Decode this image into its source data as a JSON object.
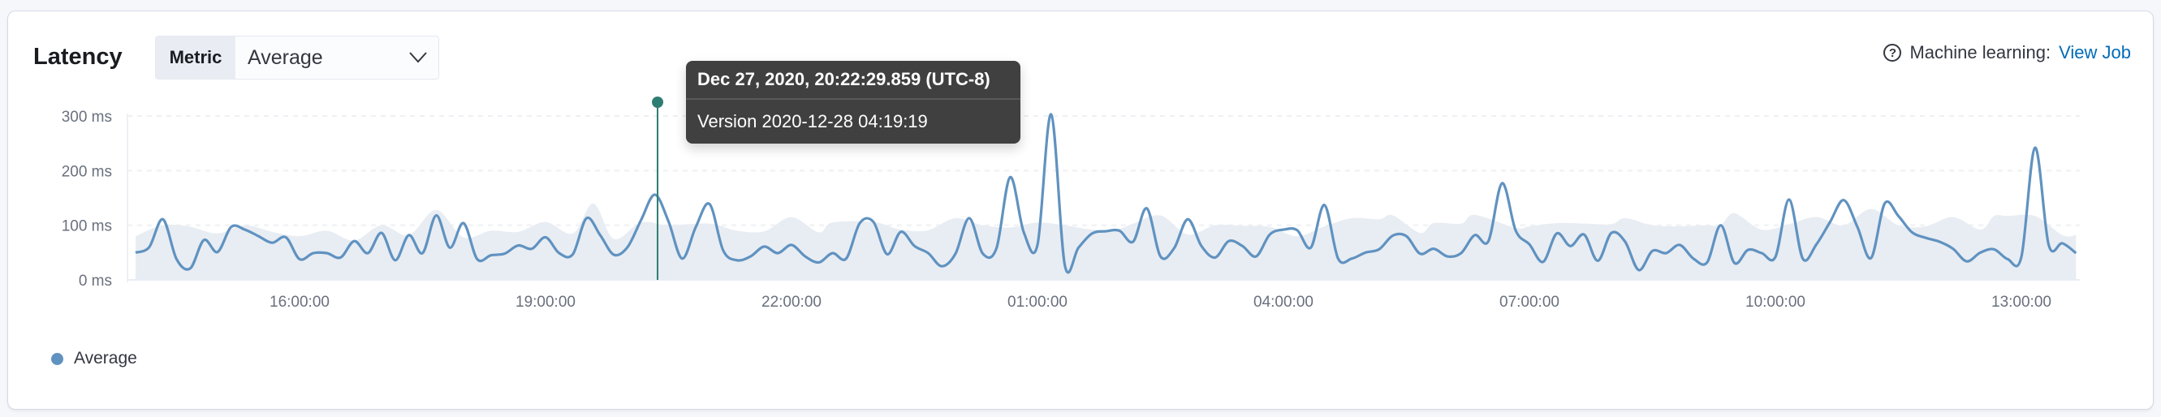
{
  "header": {
    "title": "Latency",
    "metric_select": {
      "prepend_label": "Metric",
      "selected": "Average"
    },
    "ml_link": {
      "label": "Machine learning:",
      "link_text": "View Job",
      "icon": "question-circle-icon"
    }
  },
  "tooltip": {
    "timestamp": "Dec 27, 2020, 20:22:29.859 (UTC-8)",
    "text": "Version 2020-12-28 04:19:19"
  },
  "legend": [
    {
      "label": "Average",
      "color": "#6092C0"
    }
  ],
  "colors": {
    "line": "#6092C0",
    "band": "#E6EBF2",
    "annotation": "#2E7D72",
    "link": "#006BB8"
  },
  "chart_data": {
    "type": "line",
    "title": "",
    "xlabel": "",
    "ylabel": "",
    "ylim": [
      0,
      300
    ],
    "y_ticks": [
      "0 ms",
      "100 ms",
      "200 ms",
      "300 ms"
    ],
    "y_tick_values": [
      0,
      100,
      200,
      300
    ],
    "x_ticks": [
      "16:00:00",
      "19:00:00",
      "22:00:00",
      "01:00:00",
      "04:00:00",
      "07:00:00",
      "10:00:00",
      "13:00:00"
    ],
    "x_range": [
      "14:00",
      "13:40"
    ],
    "grid": "horizontal dashed",
    "legend_position": "bottom-left",
    "annotation": {
      "x": "20:22",
      "label": "Version 2020-12-28 04:19:19"
    },
    "series": [
      {
        "name": "Average",
        "x": [
          "14:00",
          "14:10",
          "14:20",
          "14:30",
          "14:40",
          "14:50",
          "15:00",
          "15:10",
          "15:20",
          "15:30",
          "15:40",
          "15:50",
          "16:00",
          "16:10",
          "16:20",
          "16:30",
          "16:40",
          "16:50",
          "17:00",
          "17:10",
          "17:20",
          "17:30",
          "17:40",
          "17:50",
          "18:00",
          "18:10",
          "18:20",
          "18:30",
          "18:40",
          "18:50",
          "19:00",
          "19:10",
          "19:20",
          "19:30",
          "19:40",
          "19:50",
          "20:00",
          "20:10",
          "20:20",
          "20:30",
          "20:40",
          "20:50",
          "21:00",
          "21:10",
          "21:20",
          "21:30",
          "21:40",
          "21:50",
          "22:00",
          "22:10",
          "22:20",
          "22:30",
          "22:40",
          "22:50",
          "23:00",
          "23:10",
          "23:20",
          "23:30",
          "23:40",
          "23:50",
          "00:00",
          "00:10",
          "00:20",
          "00:30",
          "00:40",
          "00:50",
          "01:00",
          "01:10",
          "01:20",
          "01:30",
          "01:40",
          "01:50",
          "02:00",
          "02:10",
          "02:20",
          "02:30",
          "02:40",
          "02:50",
          "03:00",
          "03:10",
          "03:20",
          "03:30",
          "03:40",
          "03:50",
          "04:00",
          "04:10",
          "04:20",
          "04:30",
          "04:40",
          "04:50",
          "05:00",
          "05:10",
          "05:20",
          "05:30",
          "05:40",
          "05:50",
          "06:00",
          "06:10",
          "06:20",
          "06:30",
          "06:40",
          "06:50",
          "07:00",
          "07:10",
          "07:20",
          "07:30",
          "07:40",
          "07:50",
          "08:00",
          "08:10",
          "08:20",
          "08:30",
          "08:40",
          "08:50",
          "09:00",
          "09:10",
          "09:20",
          "09:30",
          "09:40",
          "09:50",
          "10:00",
          "10:10",
          "10:20",
          "10:30",
          "10:40",
          "10:50",
          "11:00",
          "11:10",
          "11:20",
          "11:30",
          "11:40",
          "11:50",
          "12:00",
          "12:10",
          "12:20",
          "12:30",
          "12:40",
          "12:50",
          "13:00",
          "13:10",
          "13:20",
          "13:30",
          "13:40"
        ],
        "values": [
          50,
          60,
          111,
          38,
          21,
          73,
          51,
          97,
          92,
          80,
          68,
          78,
          38,
          49,
          49,
          41,
          71,
          49,
          86,
          36,
          82,
          49,
          118,
          59,
          104,
          38,
          45,
          48,
          63,
          57,
          78,
          49,
          47,
          113,
          82,
          46,
          60,
          110,
          156,
          107,
          39,
          97,
          139,
          54,
          36,
          43,
          61,
          49,
          64,
          43,
          32,
          49,
          39,
          104,
          106,
          47,
          88,
          62,
          49,
          25,
          48,
          113,
          48,
          58,
          188,
          87,
          64,
          303,
          27,
          59,
          85,
          89,
          90,
          70,
          131,
          43,
          58,
          111,
          62,
          41,
          71,
          62,
          43,
          83,
          92,
          91,
          59,
          137,
          39,
          39,
          50,
          56,
          81,
          80,
          48,
          57,
          43,
          49,
          82,
          71,
          177,
          90,
          65,
          33,
          85,
          62,
          83,
          35,
          86,
          70,
          18,
          53,
          49,
          64,
          39,
          32,
          100,
          31,
          55,
          49,
          42,
          147,
          39,
          65,
          106,
          146,
          97,
          40,
          140,
          117,
          87,
          77,
          70,
          57,
          34,
          50,
          56,
          38,
          42,
          242,
          64,
          67,
          49
        ]
      }
    ],
    "expected_bounds": {
      "x": [
        "14:00",
        "14:20",
        "14:40",
        "15:00",
        "15:20",
        "15:40",
        "16:00",
        "16:20",
        "16:40",
        "17:00",
        "17:20",
        "17:40",
        "18:00",
        "18:20",
        "18:40",
        "19:00",
        "19:20",
        "19:35",
        "19:50",
        "20:10",
        "20:30",
        "21:00",
        "21:20",
        "21:40",
        "22:00",
        "22:20",
        "22:30",
        "23:00",
        "23:20",
        "23:40",
        "00:00",
        "00:20",
        "00:40",
        "01:00",
        "01:20",
        "01:40",
        "02:00",
        "02:10",
        "02:30",
        "02:50",
        "03:10",
        "03:30",
        "03:50",
        "04:10",
        "04:30",
        "04:50",
        "05:10",
        "05:20",
        "05:40",
        "05:50",
        "06:10",
        "06:20",
        "06:50",
        "07:00",
        "07:20",
        "07:40",
        "08:00",
        "08:10",
        "08:30",
        "08:50",
        "09:10",
        "09:20",
        "09:30",
        "09:50",
        "10:10",
        "10:30",
        "10:50",
        "11:10",
        "11:30",
        "11:50",
        "12:10",
        "12:30",
        "12:40",
        "12:50",
        "13:10",
        "13:30",
        "13:40"
      ],
      "upper": [
        80,
        100,
        97,
        85,
        100,
        88,
        80,
        90,
        72,
        100,
        82,
        128,
        78,
        90,
        88,
        106,
        85,
        140,
        75,
        105,
        100,
        103,
        90,
        89,
        115,
        87,
        105,
        106,
        92,
        91,
        113,
        100,
        96,
        105,
        100,
        92,
        94,
        103,
        118,
        83,
        100,
        99,
        97,
        80,
        98,
        113,
        111,
        118,
        86,
        104,
        103,
        119,
        95,
        98,
        104,
        103,
        102,
        113,
        100,
        98,
        100,
        100,
        122,
        92,
        102,
        115,
        100,
        130,
        100,
        98,
        115,
        92,
        117,
        117,
        117,
        82,
        82
      ],
      "lower": 0
    }
  }
}
